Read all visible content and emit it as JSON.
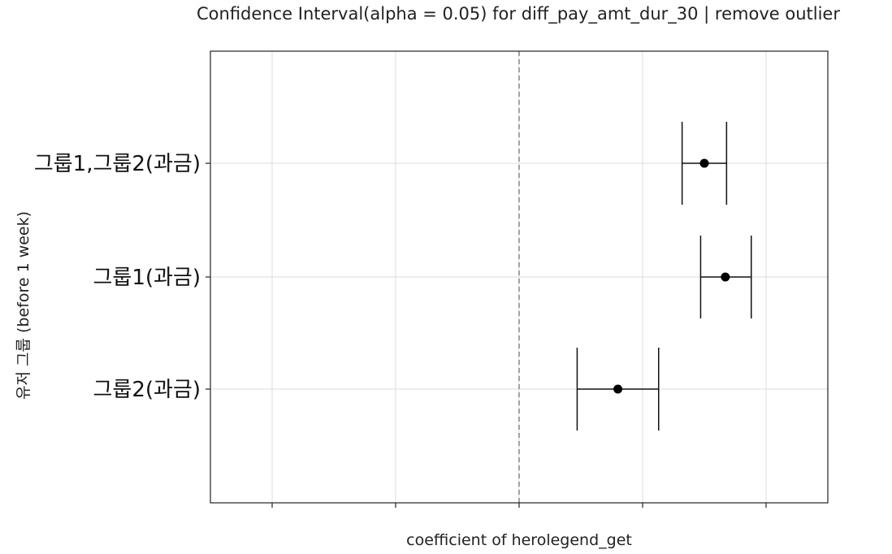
{
  "chart_data": {
    "type": "errorbar",
    "title": "Confidence Interval(alpha = 0.05) for diff_pay_amt_dur_30 | remove outlier",
    "xlabel": "coefficient of herolegend_get",
    "ylabel": "유저 그룹 (before 1 week)",
    "categories": [
      "그룹1,그룹2(과금)",
      "그룹1(과금)",
      "그룹2(과금)"
    ],
    "series": [
      {
        "values": [
          1.5,
          1.67,
          0.8
        ],
        "lower": [
          1.32,
          1.47,
          0.47
        ],
        "upper": [
          1.68,
          1.88,
          1.13
        ]
      }
    ],
    "reference_line": {
      "x": 0,
      "style": "dashed"
    },
    "xlim": [
      -2.5,
      2.5
    ],
    "xticks": [
      -2,
      -1,
      0,
      1,
      2
    ],
    "show_xtick_labels": false,
    "grid": true
  }
}
